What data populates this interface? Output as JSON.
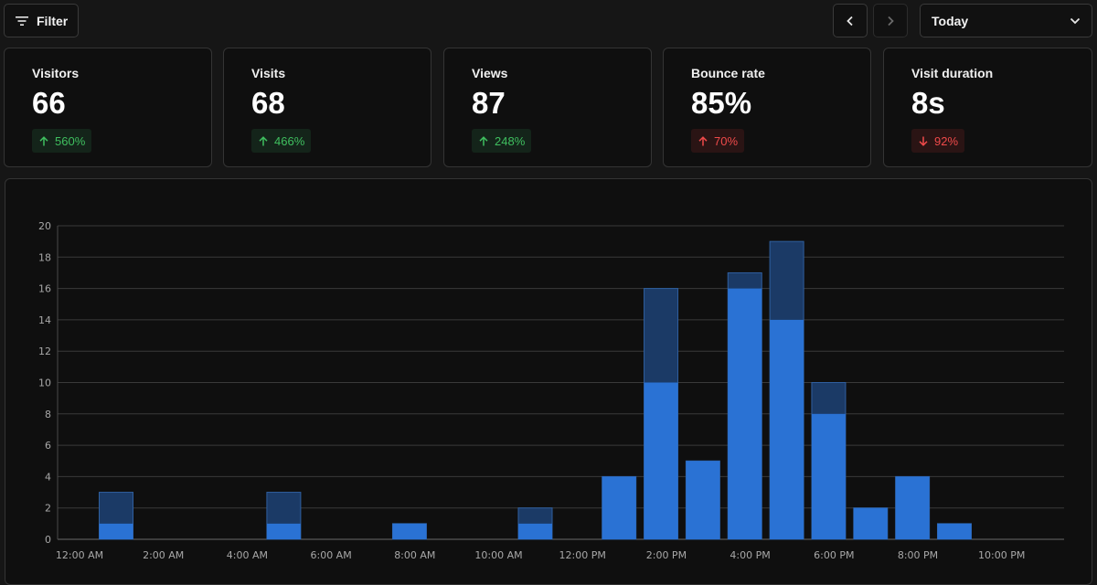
{
  "toolbar": {
    "filter_label": "Filter",
    "period": "Today"
  },
  "metrics": [
    {
      "label": "Visitors",
      "value": "66",
      "delta": "560%",
      "direction": "up"
    },
    {
      "label": "Visits",
      "value": "68",
      "delta": "466%",
      "direction": "up"
    },
    {
      "label": "Views",
      "value": "87",
      "delta": "248%",
      "direction": "up"
    },
    {
      "label": "Bounce rate",
      "value": "85%",
      "delta": "70%",
      "direction": "up"
    },
    {
      "label": "Visit duration",
      "value": "8s",
      "delta": "92%",
      "direction": "down"
    }
  ],
  "colors": {
    "views_bar": "#1b3a66",
    "visitors_bar": "#2a72d4",
    "positive": "#3fbf5f",
    "negative": "#ef4a4a"
  },
  "chart_data": {
    "type": "bar",
    "stacked_overlay": true,
    "ylim": [
      0,
      20
    ],
    "yticks": [
      "0",
      "2",
      "4",
      "6",
      "8",
      "10",
      "12",
      "14",
      "16",
      "18",
      "20"
    ],
    "xtick_labels": [
      "12:00 AM",
      "2:00 AM",
      "4:00 AM",
      "6:00 AM",
      "8:00 AM",
      "10:00 AM",
      "12:00 PM",
      "2:00 PM",
      "4:00 PM",
      "6:00 PM",
      "8:00 PM",
      "10:00 PM"
    ],
    "hours": [
      0,
      1,
      2,
      3,
      4,
      5,
      6,
      7,
      8,
      9,
      10,
      11,
      12,
      13,
      14,
      15,
      16,
      17,
      18,
      19,
      20,
      21,
      22,
      23
    ],
    "series": [
      {
        "name": "Views",
        "values": [
          0,
          3,
          0,
          0,
          0,
          3,
          0,
          0,
          1,
          0,
          0,
          2,
          0,
          4,
          16,
          5,
          17,
          19,
          10,
          2,
          4,
          1,
          0,
          0
        ]
      },
      {
        "name": "Visitors",
        "values": [
          0,
          1,
          0,
          0,
          0,
          1,
          0,
          0,
          1,
          0,
          0,
          1,
          0,
          4,
          10,
          5,
          16,
          14,
          8,
          2,
          4,
          1,
          0,
          0
        ]
      }
    ]
  }
}
